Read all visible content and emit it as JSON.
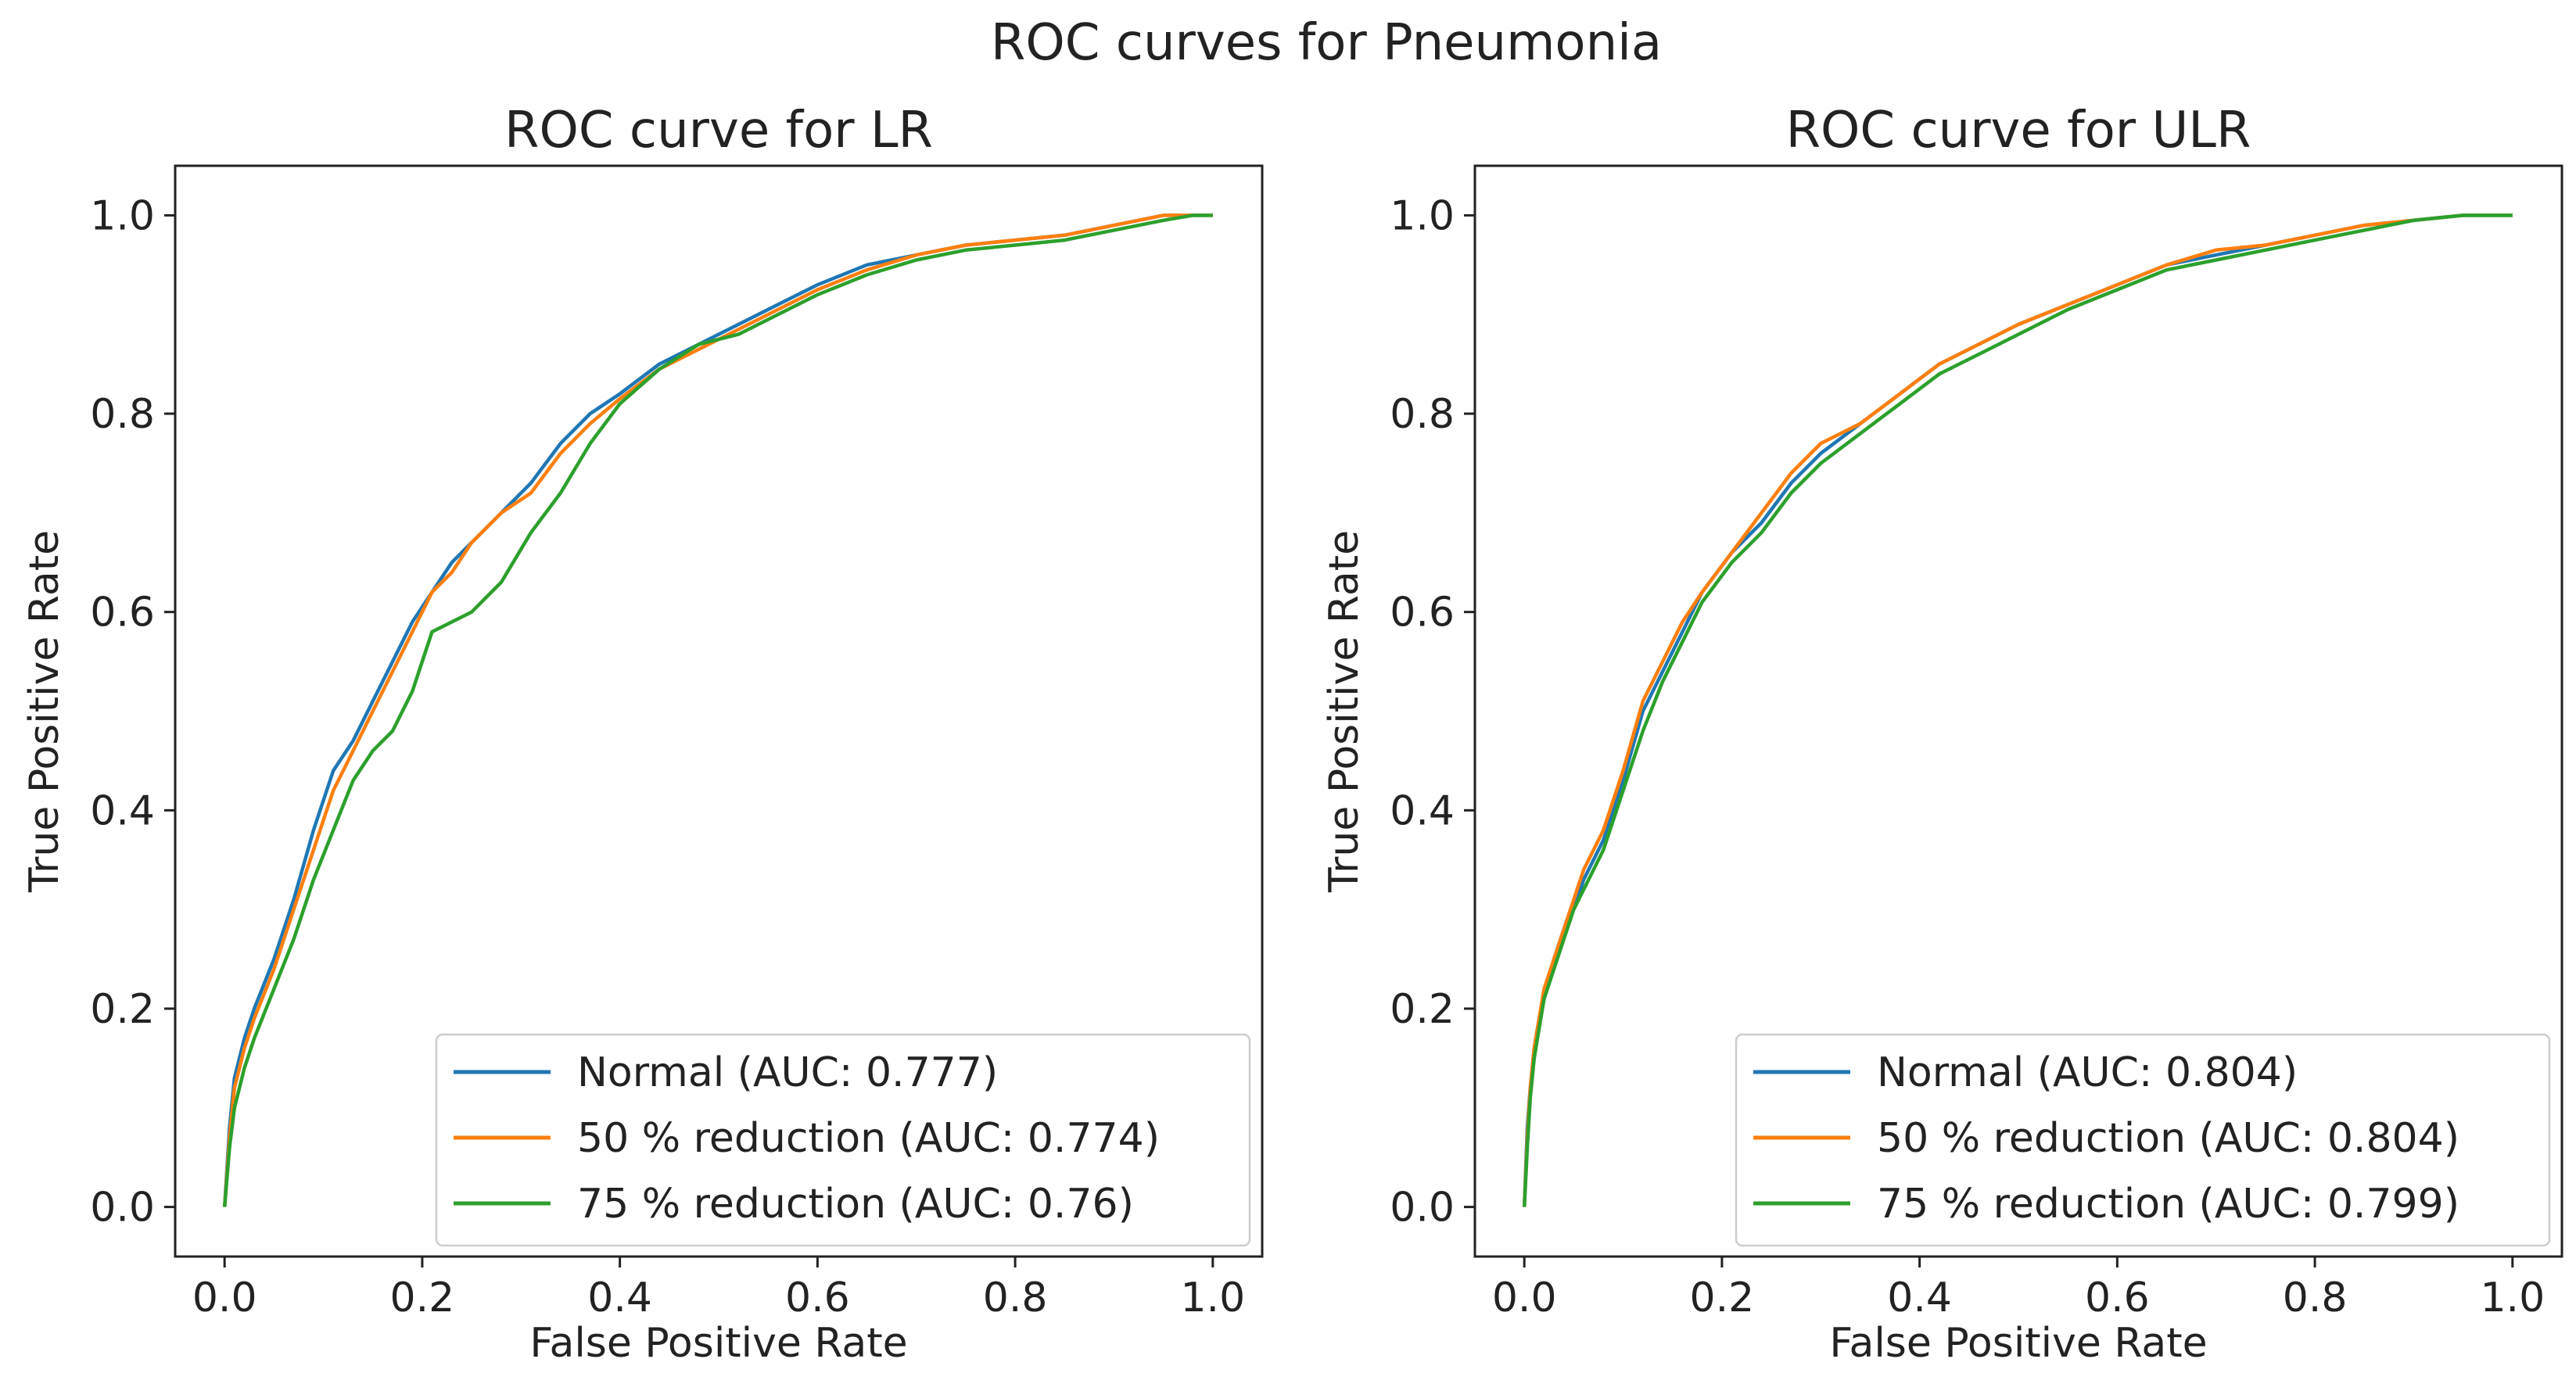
{
  "suptitle": "ROC curves for Pneumonia",
  "chart_data": [
    {
      "type": "line",
      "title": "ROC curve for LR",
      "xlabel": "False Positive Rate",
      "ylabel": "True Positive Rate",
      "xlim": [
        -0.05,
        1.05
      ],
      "ylim": [
        -0.05,
        1.05
      ],
      "xticks": [
        "0.0",
        "0.2",
        "0.4",
        "0.6",
        "0.8",
        "1.0"
      ],
      "yticks": [
        "0.0",
        "0.2",
        "0.4",
        "0.6",
        "0.8",
        "1.0"
      ],
      "legend_position": "lower-right",
      "series": [
        {
          "name": "Normal (AUC: 0.777)",
          "color": "#1f77b4",
          "x": [
            0,
            0.005,
            0.01,
            0.02,
            0.03,
            0.05,
            0.07,
            0.09,
            0.11,
            0.13,
            0.15,
            0.17,
            0.19,
            0.21,
            0.23,
            0.25,
            0.28,
            0.31,
            0.34,
            0.37,
            0.4,
            0.44,
            0.48,
            0.52,
            0.56,
            0.6,
            0.65,
            0.7,
            0.75,
            0.8,
            0.85,
            0.9,
            0.95,
            0.98,
            1.0
          ],
          "y": [
            0,
            0.08,
            0.13,
            0.17,
            0.2,
            0.25,
            0.31,
            0.38,
            0.44,
            0.47,
            0.51,
            0.55,
            0.59,
            0.62,
            0.65,
            0.67,
            0.7,
            0.73,
            0.77,
            0.8,
            0.82,
            0.85,
            0.87,
            0.89,
            0.91,
            0.93,
            0.95,
            0.96,
            0.97,
            0.975,
            0.98,
            0.99,
            1.0,
            1.0,
            1.0
          ]
        },
        {
          "name": "50 % reduction (AUC: 0.774)",
          "color": "#ff7f0e",
          "x": [
            0,
            0.005,
            0.01,
            0.02,
            0.03,
            0.05,
            0.07,
            0.09,
            0.11,
            0.13,
            0.15,
            0.17,
            0.19,
            0.21,
            0.23,
            0.25,
            0.28,
            0.31,
            0.34,
            0.37,
            0.4,
            0.44,
            0.48,
            0.52,
            0.56,
            0.6,
            0.65,
            0.7,
            0.75,
            0.8,
            0.85,
            0.9,
            0.95,
            0.98,
            1.0
          ],
          "y": [
            0,
            0.07,
            0.12,
            0.16,
            0.19,
            0.24,
            0.3,
            0.36,
            0.42,
            0.46,
            0.5,
            0.54,
            0.58,
            0.62,
            0.64,
            0.67,
            0.7,
            0.72,
            0.76,
            0.79,
            0.815,
            0.845,
            0.865,
            0.885,
            0.905,
            0.925,
            0.945,
            0.96,
            0.97,
            0.975,
            0.98,
            0.99,
            1.0,
            1.0,
            1.0
          ]
        },
        {
          "name": "75 % reduction (AUC: 0.76)",
          "color": "#2ca02c",
          "x": [
            0,
            0.005,
            0.01,
            0.02,
            0.03,
            0.05,
            0.07,
            0.09,
            0.11,
            0.13,
            0.15,
            0.17,
            0.19,
            0.21,
            0.23,
            0.25,
            0.28,
            0.31,
            0.34,
            0.37,
            0.4,
            0.44,
            0.48,
            0.52,
            0.56,
            0.6,
            0.65,
            0.7,
            0.75,
            0.8,
            0.85,
            0.9,
            0.95,
            0.98,
            1.0
          ],
          "y": [
            0,
            0.06,
            0.1,
            0.14,
            0.17,
            0.22,
            0.27,
            0.33,
            0.38,
            0.43,
            0.46,
            0.48,
            0.52,
            0.58,
            0.59,
            0.6,
            0.63,
            0.68,
            0.72,
            0.77,
            0.81,
            0.845,
            0.87,
            0.88,
            0.9,
            0.92,
            0.94,
            0.955,
            0.965,
            0.97,
            0.975,
            0.985,
            0.995,
            1.0,
            1.0
          ]
        }
      ]
    },
    {
      "type": "line",
      "title": "ROC curve for ULR",
      "xlabel": "False Positive Rate",
      "ylabel": "True Positive Rate",
      "xlim": [
        -0.05,
        1.05
      ],
      "ylim": [
        -0.05,
        1.05
      ],
      "xticks": [
        "0.0",
        "0.2",
        "0.4",
        "0.6",
        "0.8",
        "1.0"
      ],
      "yticks": [
        "0.0",
        "0.2",
        "0.4",
        "0.6",
        "0.8",
        "1.0"
      ],
      "legend_position": "lower-right",
      "series": [
        {
          "name": "Normal (AUC: 0.804)",
          "color": "#1f77b4",
          "x": [
            0,
            0.003,
            0.006,
            0.01,
            0.015,
            0.02,
            0.03,
            0.04,
            0.05,
            0.06,
            0.08,
            0.1,
            0.12,
            0.14,
            0.16,
            0.18,
            0.21,
            0.24,
            0.27,
            0.3,
            0.34,
            0.38,
            0.42,
            0.46,
            0.5,
            0.55,
            0.6,
            0.65,
            0.7,
            0.75,
            0.8,
            0.85,
            0.9,
            0.95,
            1.0
          ],
          "y": [
            0,
            0.08,
            0.12,
            0.16,
            0.19,
            0.21,
            0.25,
            0.28,
            0.3,
            0.33,
            0.37,
            0.43,
            0.5,
            0.54,
            0.58,
            0.62,
            0.66,
            0.69,
            0.73,
            0.76,
            0.79,
            0.82,
            0.85,
            0.87,
            0.89,
            0.91,
            0.93,
            0.95,
            0.96,
            0.97,
            0.98,
            0.99,
            0.995,
            1.0,
            1.0
          ]
        },
        {
          "name": "50 % reduction (AUC: 0.804)",
          "color": "#ff7f0e",
          "x": [
            0,
            0.003,
            0.006,
            0.01,
            0.015,
            0.02,
            0.03,
            0.04,
            0.05,
            0.06,
            0.08,
            0.1,
            0.12,
            0.14,
            0.16,
            0.18,
            0.21,
            0.24,
            0.27,
            0.3,
            0.34,
            0.38,
            0.42,
            0.46,
            0.5,
            0.55,
            0.6,
            0.65,
            0.7,
            0.75,
            0.8,
            0.85,
            0.9,
            0.95,
            1.0
          ],
          "y": [
            0,
            0.07,
            0.12,
            0.16,
            0.19,
            0.22,
            0.25,
            0.28,
            0.31,
            0.34,
            0.38,
            0.44,
            0.51,
            0.55,
            0.59,
            0.62,
            0.66,
            0.7,
            0.74,
            0.77,
            0.79,
            0.82,
            0.85,
            0.87,
            0.89,
            0.91,
            0.93,
            0.95,
            0.965,
            0.97,
            0.98,
            0.99,
            0.995,
            1.0,
            1.0
          ]
        },
        {
          "name": "75 % reduction (AUC: 0.799)",
          "color": "#2ca02c",
          "x": [
            0,
            0.003,
            0.006,
            0.01,
            0.015,
            0.02,
            0.03,
            0.04,
            0.05,
            0.06,
            0.08,
            0.1,
            0.12,
            0.14,
            0.16,
            0.18,
            0.21,
            0.24,
            0.27,
            0.3,
            0.34,
            0.38,
            0.42,
            0.46,
            0.5,
            0.55,
            0.6,
            0.65,
            0.7,
            0.75,
            0.8,
            0.85,
            0.9,
            0.95,
            1.0
          ],
          "y": [
            0,
            0.06,
            0.11,
            0.15,
            0.18,
            0.21,
            0.24,
            0.27,
            0.3,
            0.32,
            0.36,
            0.42,
            0.48,
            0.53,
            0.57,
            0.61,
            0.65,
            0.68,
            0.72,
            0.75,
            0.78,
            0.81,
            0.84,
            0.86,
            0.88,
            0.905,
            0.925,
            0.945,
            0.955,
            0.965,
            0.975,
            0.985,
            0.995,
            1.0,
            1.0
          ]
        }
      ]
    }
  ]
}
